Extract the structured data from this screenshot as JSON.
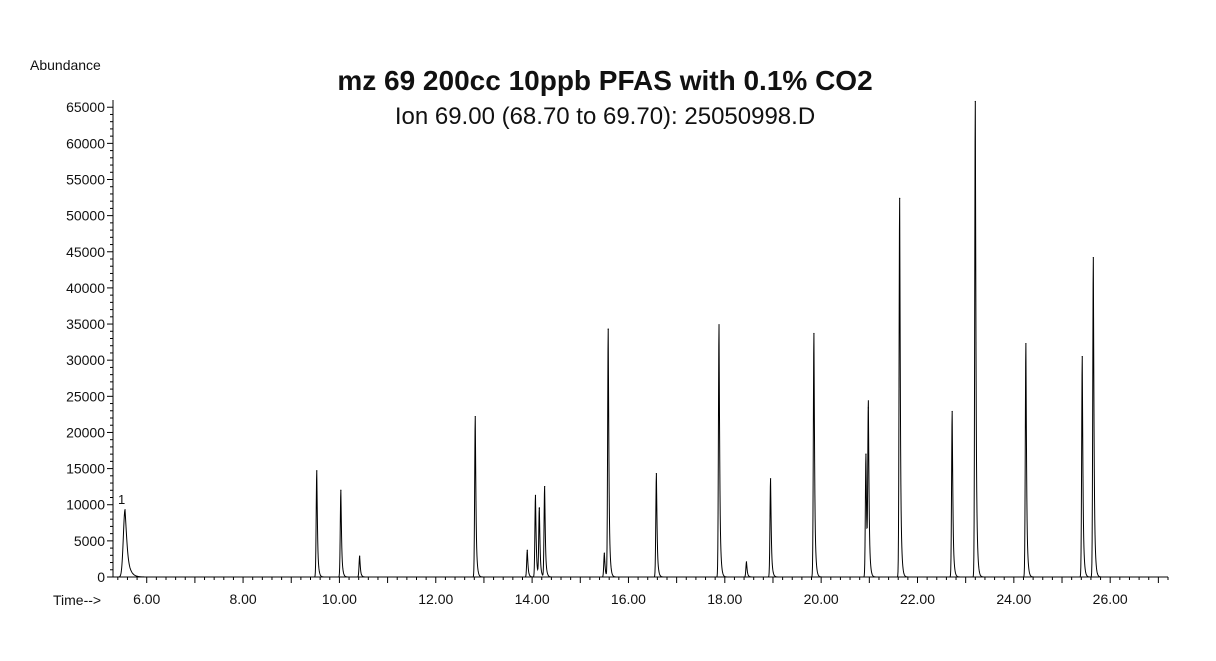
{
  "chart_data": {
    "type": "line",
    "title": "mz 69 200cc 10ppb PFAS with 0.1% CO2",
    "subtitle": "Ion  69.00 (68.70 to 69.70): 25050998.D",
    "ylabel": "Abundance",
    "xlabel": "Time-->",
    "xlim": [
      5.3,
      27.2
    ],
    "ylim": [
      0,
      66000
    ],
    "x_ticks": [
      "6.00",
      "8.00",
      "10.00",
      "12.00",
      "14.00",
      "16.00",
      "18.00",
      "20.00",
      "22.00",
      "24.00",
      "26.00"
    ],
    "y_ticks": [
      "0",
      "5000",
      "10000",
      "15000",
      "20000",
      "25000",
      "30000",
      "35000",
      "40000",
      "45000",
      "50000",
      "55000",
      "60000",
      "65000"
    ],
    "grid": false,
    "peak_annotation": {
      "text": "1",
      "x": 5.5
    },
    "series": [
      {
        "peaks": [
          {
            "x": 5.55,
            "y": 9300
          },
          {
            "x": 9.53,
            "y": 14700
          },
          {
            "x": 10.03,
            "y": 12000
          },
          {
            "x": 10.42,
            "y": 2900
          },
          {
            "x": 12.82,
            "y": 22200
          },
          {
            "x": 13.9,
            "y": 3700
          },
          {
            "x": 14.07,
            "y": 11300
          },
          {
            "x": 14.15,
            "y": 9500
          },
          {
            "x": 14.26,
            "y": 12500
          },
          {
            "x": 15.5,
            "y": 3300
          },
          {
            "x": 15.58,
            "y": 34300
          },
          {
            "x": 16.58,
            "y": 14300
          },
          {
            "x": 17.88,
            "y": 34900
          },
          {
            "x": 18.45,
            "y": 2100
          },
          {
            "x": 18.95,
            "y": 13600
          },
          {
            "x": 19.85,
            "y": 33700
          },
          {
            "x": 20.93,
            "y": 17000
          },
          {
            "x": 20.98,
            "y": 23400
          },
          {
            "x": 21.63,
            "y": 52400
          },
          {
            "x": 22.72,
            "y": 22900
          },
          {
            "x": 23.2,
            "y": 65800
          },
          {
            "x": 24.25,
            "y": 32300
          },
          {
            "x": 25.42,
            "y": 30500
          },
          {
            "x": 25.65,
            "y": 44200
          }
        ]
      }
    ]
  }
}
